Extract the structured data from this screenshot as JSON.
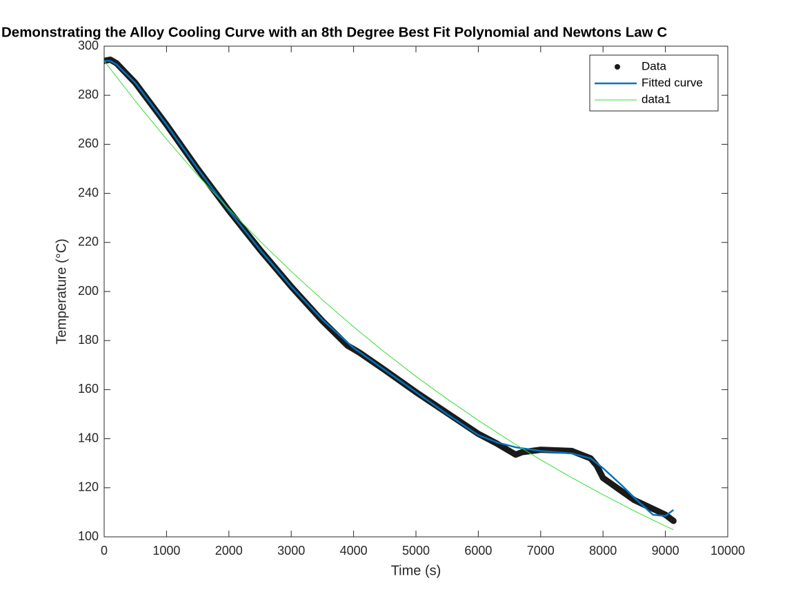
{
  "chart_data": {
    "type": "line",
    "title": "Demonstrating the Alloy Cooling Curve with an 8th Degree Best Fit Polynomial and Newtons Law C",
    "x_label": "Time (s)",
    "y_label": "Temperature (°C)",
    "xlim": [
      0,
      10000
    ],
    "ylim": [
      100,
      300
    ],
    "xticks": [
      0,
      1000,
      2000,
      3000,
      4000,
      5000,
      6000,
      7000,
      8000,
      9000,
      10000
    ],
    "yticks": [
      100,
      120,
      140,
      160,
      180,
      200,
      220,
      240,
      260,
      280,
      300
    ],
    "legend": "top-right",
    "series": [
      {
        "name": "Data",
        "color": "#1a1a1a",
        "style": "dots",
        "x": [
          0,
          100,
          200,
          500,
          1000,
          1500,
          2000,
          2500,
          3000,
          3500,
          3900,
          4000,
          4100,
          4500,
          5000,
          5500,
          6000,
          6300,
          6600,
          6700,
          7000,
          7500,
          7800,
          7900,
          8000,
          8500,
          9000,
          9130
        ],
        "values": [
          294,
          294.5,
          293,
          285,
          268,
          250,
          233,
          217,
          202,
          188,
          178,
          176.5,
          175,
          168,
          159,
          150.5,
          142,
          138,
          133.5,
          134.5,
          135.5,
          135,
          132,
          129,
          124,
          115,
          109,
          106.5
        ]
      },
      {
        "name": "Fitted curve",
        "color": "#0072bd",
        "style": "line",
        "x": [
          0,
          100,
          200,
          500,
          1000,
          1500,
          2000,
          2500,
          3000,
          3500,
          4000,
          4500,
          5000,
          5500,
          6000,
          6300,
          6600,
          7000,
          7500,
          7800,
          8000,
          8300,
          8500,
          8800,
          9000,
          9130
        ],
        "values": [
          294,
          294,
          292.5,
          285,
          268,
          250,
          233,
          217,
          202,
          188.5,
          177,
          168,
          159,
          150,
          141.5,
          138.5,
          136.5,
          135,
          134,
          132,
          128,
          121,
          116,
          109,
          108.5,
          111
        ]
      },
      {
        "name": "data1",
        "color": "#33dd33",
        "style": "thin",
        "x": [
          0,
          500,
          1000,
          1500,
          2000,
          2500,
          3000,
          3500,
          4000,
          4500,
          5000,
          5500,
          6000,
          6500,
          7000,
          7500,
          8000,
          8500,
          9000,
          9130
        ],
        "values": [
          294,
          277.6,
          262.1,
          247.4,
          233.6,
          220.5,
          208.2,
          196.6,
          185.6,
          175.2,
          165.4,
          156.2,
          147.5,
          139.2,
          131.4,
          124.1,
          117.2,
          110.6,
          104.4,
          102.9
        ]
      }
    ]
  }
}
